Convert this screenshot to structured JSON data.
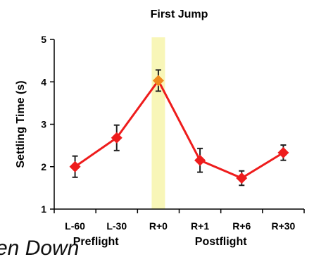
{
  "chart_data": {
    "type": "line",
    "title": "First Jump",
    "ylabel": "Settling Time (s)",
    "xlabel": "",
    "categories": [
      "L-60",
      "L-30",
      "R+0",
      "R+1",
      "R+6",
      "R+30"
    ],
    "ylim": [
      1,
      5
    ],
    "yticks": [
      1,
      2,
      3,
      4,
      5
    ],
    "grid": false,
    "series": [
      {
        "values": [
          2.0,
          2.68,
          4.03,
          2.15,
          1.73,
          2.33
        ],
        "error": [
          0.25,
          0.3,
          0.25,
          0.28,
          0.17,
          0.18
        ],
        "color": "#ee1c1c",
        "marker": "diamond"
      }
    ],
    "highlight": {
      "category": "R+0",
      "color": "#f8f6b8",
      "marker_color": "#f08a1e"
    },
    "groups": [
      {
        "label": "Preflight",
        "categories": [
          "L-60",
          "L-30"
        ]
      },
      {
        "label": "Postflight",
        "categories": [
          "R+0",
          "R+1",
          "R+6",
          "R+30"
        ]
      }
    ]
  },
  "cutoff_text": "en Down"
}
